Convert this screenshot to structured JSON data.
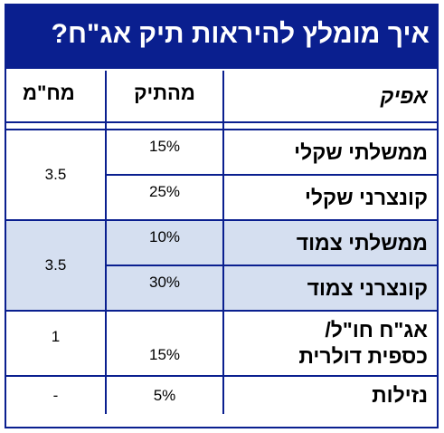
{
  "title": "איך מומלץ להיראות תיק אג\"ח?",
  "headers": {
    "name": "אפיק",
    "allocation": "מהתיק",
    "duration": "מח\"מ"
  },
  "rows": [
    {
      "name": "ממשלתי שקלי",
      "allocation": "15%"
    },
    {
      "name": "קונצרני שקלי",
      "allocation": "25%"
    },
    {
      "name": "ממשלתי צמוד",
      "allocation": "10%"
    },
    {
      "name": "קונצרני צמוד",
      "allocation": "30%"
    },
    {
      "name_line1": "אג\"ח חו\"ל/",
      "name_line2": "כספית דולרית",
      "allocation": "15%"
    },
    {
      "name": "נזילות",
      "allocation": "5%"
    }
  ],
  "groups": [
    {
      "duration": "3.5"
    },
    {
      "duration": "3.5"
    },
    {
      "duration": "1"
    },
    {
      "duration": "-"
    }
  ],
  "colors": {
    "frame": "#0a1f8f",
    "title_background": "#0a1f8f",
    "title_text": "#ffffff",
    "shaded_group": "#d5dff0"
  }
}
